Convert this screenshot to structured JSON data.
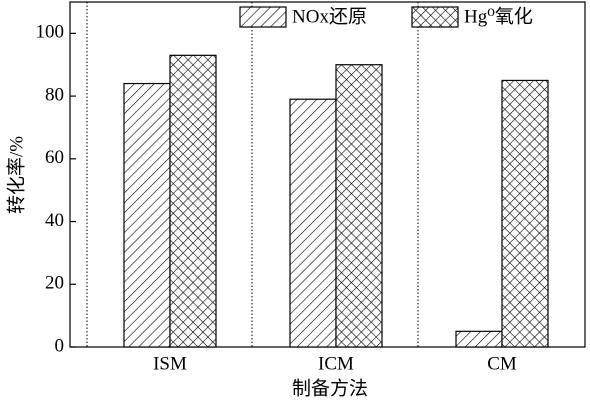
{
  "chart_data": {
    "type": "bar",
    "x_label": "制备方法",
    "y_label": "转化率/%",
    "categories": [
      "ISM",
      "ICM",
      "CM"
    ],
    "series": [
      {
        "name": "NOx还原",
        "color": "#000000",
        "hatch": "diagonal",
        "values": [
          84,
          79,
          5
        ]
      },
      {
        "name": "Hg⁰氧化",
        "color": "#000000",
        "hatch": "cross",
        "values": [
          93,
          90,
          85
        ]
      }
    ],
    "ylim": [
      0,
      110
    ],
    "yticks": [
      0,
      20,
      40,
      60,
      80,
      100
    ],
    "legend": "top-right"
  }
}
